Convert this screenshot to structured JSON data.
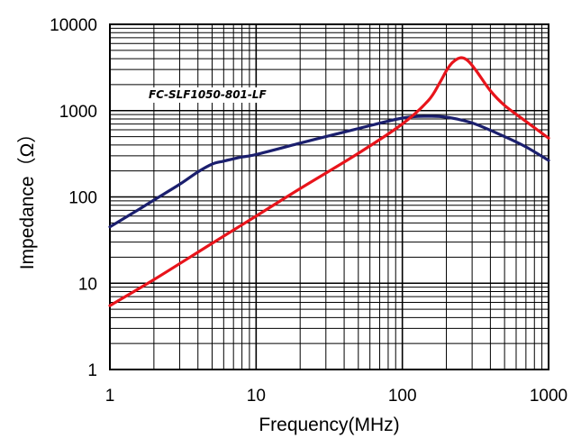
{
  "chart_data": {
    "type": "line",
    "title": "",
    "xlabel": "Frequency(MHz)",
    "ylabel": "Impedance（Ω）",
    "x_scale": "log",
    "y_scale": "log",
    "xlim": [
      1,
      1000
    ],
    "ylim": [
      1,
      10000
    ],
    "grid": true,
    "x_ticks": [
      {
        "value": 1,
        "label": "1"
      },
      {
        "value": 10,
        "label": "10"
      },
      {
        "value": 100,
        "label": "100"
      },
      {
        "value": 1000,
        "label": "1000"
      }
    ],
    "y_ticks": [
      {
        "value": 1,
        "label": "1"
      },
      {
        "value": 10,
        "label": "10"
      },
      {
        "value": 100,
        "label": "100"
      },
      {
        "value": 1000,
        "label": "1000"
      },
      {
        "value": 10000,
        "label": "10000"
      }
    ],
    "annotation": "FC-SLF1050-801-LF",
    "series": [
      {
        "color": "#1b1f6e",
        "x": [
          1,
          1.5,
          2,
          3,
          4,
          5,
          6,
          8,
          10,
          20,
          30,
          50,
          100,
          150,
          200,
          300,
          500,
          700,
          1000
        ],
        "y": [
          45,
          68,
          92,
          140,
          195,
          240,
          260,
          290,
          310,
          420,
          500,
          620,
          820,
          860,
          840,
          720,
          500,
          380,
          265
        ]
      },
      {
        "color": "#e8141b",
        "x": [
          1,
          2,
          5,
          10,
          20,
          50,
          100,
          150,
          180,
          200,
          220,
          250,
          280,
          320,
          400,
          500,
          700,
          1000
        ],
        "y": [
          5.5,
          11,
          29,
          60,
          125,
          320,
          700,
          1300,
          2100,
          2900,
          3600,
          4100,
          3800,
          2900,
          1700,
          1150,
          750,
          480
        ]
      }
    ]
  }
}
